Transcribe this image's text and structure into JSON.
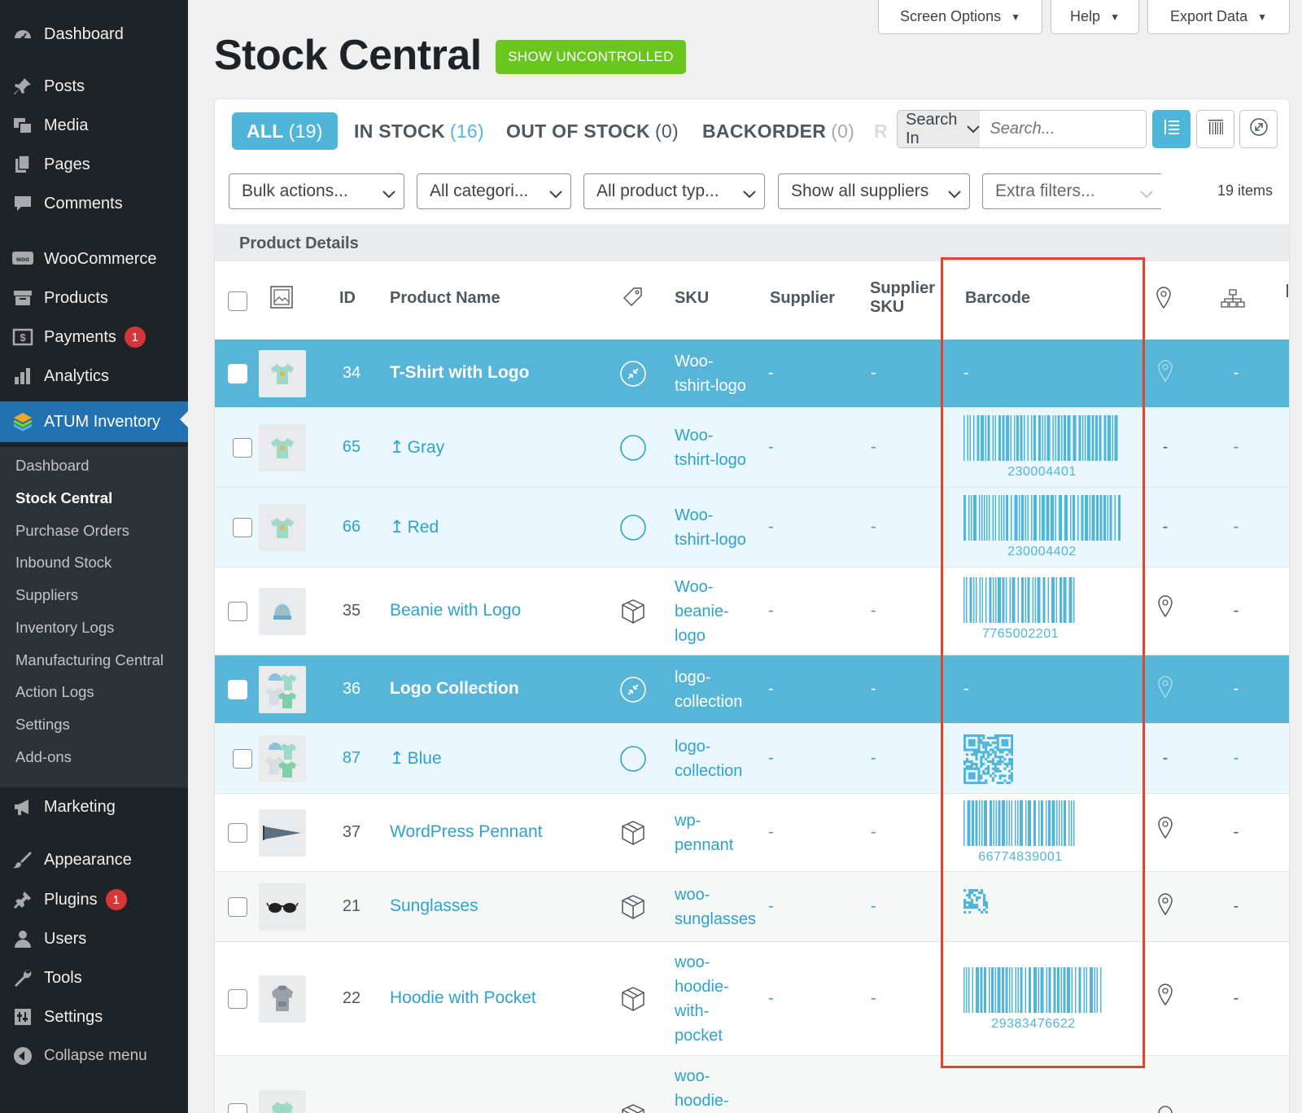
{
  "sidebar": {
    "menu": [
      {
        "label": "Dashboard",
        "icon": "dashboard-icon"
      },
      {
        "label": "Posts",
        "icon": "pin-icon"
      },
      {
        "label": "Media",
        "icon": "media-icon"
      },
      {
        "label": "Pages",
        "icon": "pages-icon"
      },
      {
        "label": "Comments",
        "icon": "comments-icon"
      },
      {
        "label": "WooCommerce",
        "icon": "woocommerce-icon"
      },
      {
        "label": "Products",
        "icon": "products-icon"
      },
      {
        "label": "Payments",
        "icon": "payments-icon",
        "badge": "1"
      },
      {
        "label": "Analytics",
        "icon": "analytics-icon"
      },
      {
        "label": "ATUM Inventory",
        "icon": "atum-icon"
      },
      {
        "label": "Marketing",
        "icon": "megaphone-icon"
      },
      {
        "label": "Appearance",
        "icon": "brush-icon"
      },
      {
        "label": "Plugins",
        "icon": "plugin-icon",
        "badge": "1"
      },
      {
        "label": "Users",
        "icon": "user-icon"
      },
      {
        "label": "Tools",
        "icon": "wrench-icon"
      },
      {
        "label": "Settings",
        "icon": "settings-icon"
      },
      {
        "label": "Collapse menu",
        "icon": "collapse-icon"
      }
    ],
    "submenu": [
      "Dashboard",
      "Stock Central",
      "Purchase Orders",
      "Inbound Stock",
      "Suppliers",
      "Inventory Logs",
      "Manufacturing Central",
      "Action Logs",
      "Settings",
      "Add-ons"
    ]
  },
  "header": {
    "screen_options": "Screen Options",
    "help": "Help",
    "export": "Export Data",
    "title": "Stock Central",
    "show_uncontrolled": "SHOW UNCONTROLLED"
  },
  "views": [
    {
      "label": "ALL",
      "count": "(19)"
    },
    {
      "label": "IN STOCK",
      "count": "(16)"
    },
    {
      "label": "OUT OF STOCK",
      "count": "(0)"
    },
    {
      "label": "BACKORDER",
      "count": "(0)"
    },
    {
      "label": "R",
      "count": ""
    }
  ],
  "search": {
    "in_label": "Search In",
    "placeholder": "Search..."
  },
  "filters": {
    "bulk": "Bulk actions...",
    "categories": "All categori...",
    "product_types": "All product typ...",
    "suppliers": "Show all suppliers",
    "extra": "Extra filters...",
    "items_count": "19 items"
  },
  "table": {
    "group_label": "Product Details",
    "columns": {
      "id": "ID",
      "name": "Product Name",
      "sku": "SKU",
      "supplier": "Supplier",
      "supplier_sku_1": "Supplier",
      "supplier_sku_2": "SKU",
      "barcode": "Barcode"
    },
    "rows": [
      {
        "id": "34",
        "name": "T-Shirt with Logo",
        "sku": [
          "Woo-",
          "tshirt-logo"
        ],
        "supplier": "-",
        "supplier_sku": "-",
        "barcode": "-",
        "location": "",
        "bom": "-"
      },
      {
        "id": "65",
        "name": "Gray",
        "sku": [
          "Woo-",
          "tshirt-logo"
        ],
        "supplier": "-",
        "supplier_sku": "-",
        "barcode": "230004401",
        "location": "-",
        "bom": "-"
      },
      {
        "id": "66",
        "name": "Red",
        "sku": [
          "Woo-",
          "tshirt-logo"
        ],
        "supplier": "-",
        "supplier_sku": "-",
        "barcode": "230004402",
        "location": "-",
        "bom": "-"
      },
      {
        "id": "35",
        "name": "Beanie with Logo",
        "sku": [
          "Woo-",
          "beanie-",
          "logo"
        ],
        "supplier": "-",
        "supplier_sku": "-",
        "barcode": "7765002201",
        "location": "",
        "bom": "-"
      },
      {
        "id": "36",
        "name": "Logo Collection",
        "sku": [
          "logo-",
          "collection"
        ],
        "supplier": "-",
        "supplier_sku": "-",
        "barcode": "-",
        "location": "",
        "bom": "-"
      },
      {
        "id": "87",
        "name": "Blue",
        "sku": [
          "logo-",
          "collection"
        ],
        "supplier": "-",
        "supplier_sku": "-",
        "barcode": "",
        "location": "-",
        "bom": "-"
      },
      {
        "id": "37",
        "name": "WordPress Pennant",
        "sku": [
          "wp-",
          "pennant"
        ],
        "supplier": "-",
        "supplier_sku": "-",
        "barcode": "66774839001",
        "location": "",
        "bom": "-"
      },
      {
        "id": "21",
        "name": "Sunglasses",
        "sku": [
          "woo-",
          "sunglasses"
        ],
        "supplier": "-",
        "supplier_sku": "-",
        "barcode": "",
        "location": "",
        "bom": "-"
      },
      {
        "id": "22",
        "name": "Hoodie with Pocket",
        "sku": [
          "woo-",
          "hoodie-",
          "with-",
          "pocket"
        ],
        "supplier": "-",
        "supplier_sku": "-",
        "barcode": "29383476622",
        "location": "",
        "bom": "-"
      },
      {
        "id": "",
        "name": "",
        "sku": [
          "woo-",
          "hoodie-"
        ],
        "supplier": "",
        "supplier_sku": "",
        "barcode": "",
        "location": "",
        "bom": ""
      }
    ]
  },
  "colors": {
    "accent": "#4fb6da",
    "parent_row": "#57b5d8",
    "highlight": "#e0452b",
    "green": "#69c61d",
    "sidebar": "#1d2327",
    "wp_blue": "#2271b1"
  }
}
